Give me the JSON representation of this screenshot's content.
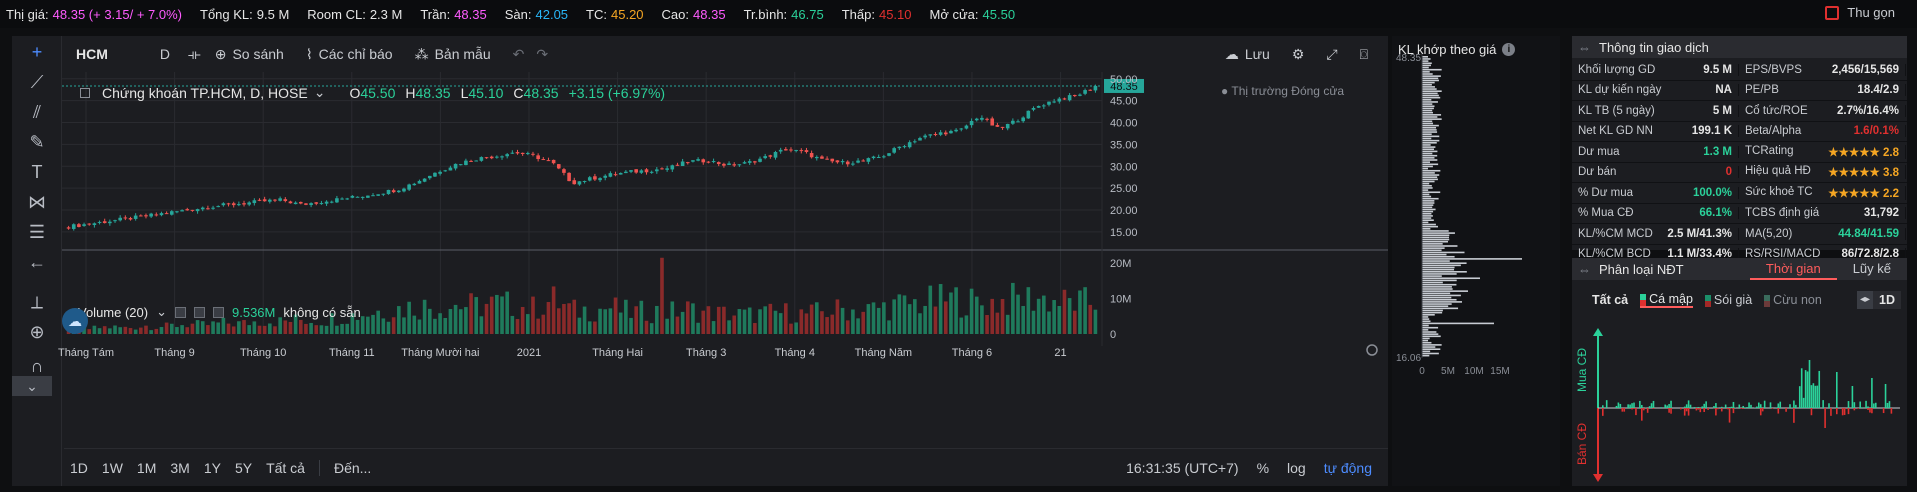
{
  "ticker": {
    "items": [
      {
        "label": "Thị giá:",
        "value": "48.35 (+ 3.15/ + 7.0%)",
        "color": "#ff5cff"
      },
      {
        "label": "Tổng KL:",
        "value": "9.5 M",
        "color": "#e6e6e6"
      },
      {
        "label": "Room CL:",
        "value": "2.3 M",
        "color": "#e6e6e6"
      },
      {
        "label": "Trần:",
        "value": "48.35",
        "color": "#ff5cff"
      },
      {
        "label": "Sàn:",
        "value": "42.05",
        "color": "#29b6f6"
      },
      {
        "label": "TC:",
        "value": "45.20",
        "color": "#f5a623"
      },
      {
        "label": "Cao:",
        "value": "48.35",
        "color": "#ff5cff"
      },
      {
        "label": "Tr.bình:",
        "value": "46.75",
        "color": "#2bd19a"
      },
      {
        "label": "Thấp:",
        "value": "45.10",
        "color": "#e0302f"
      },
      {
        "label": "Mở cửa:",
        "value": "45.50",
        "color": "#2bd19a"
      }
    ],
    "collapse_label": "Thu gọn"
  },
  "toolbar": {
    "symbol": "HCM",
    "interval": "D",
    "compare": "So sánh",
    "indicators": "Các chỉ báo",
    "templates": "Bản mẫu",
    "save": "Lưu"
  },
  "legend": {
    "title": "Chứng khoán TP.HCM, D, HOSE",
    "open_label": "O",
    "open": "45.50",
    "high_label": "H",
    "high": "48.35",
    "low_label": "L",
    "low": "45.10",
    "close_label": "C",
    "close": "48.35",
    "change": "+3.15 (+6.97%)",
    "market_status": "Thị trường Đóng cửa",
    "last_price_tag": "48.35"
  },
  "volume_legend": {
    "title": "Volume (20)",
    "value": "9.536M",
    "na": "không có sẵn"
  },
  "bottom_bar": {
    "ranges": [
      "1D",
      "1W",
      "1M",
      "3M",
      "1Y",
      "5Y",
      "Tất cả"
    ],
    "goto": "Đến...",
    "time": "16:31:35 (UTC+7)",
    "percent": "%",
    "log": "log",
    "auto": "tự động"
  },
  "chart_data": {
    "type": "candlestick",
    "x_tick_labels": [
      "Tháng Tám",
      "Tháng 9",
      "Tháng 10",
      "Tháng 11",
      "Tháng Mười hai",
      "2021",
      "Tháng Hai",
      "Tháng 3",
      "Tháng 4",
      "Tháng Năm",
      "Tháng 6",
      "21"
    ],
    "price_ticks": [
      "50.00",
      "45.00",
      "40.00",
      "35.00",
      "30.00",
      "25.00",
      "20.00",
      "15.00"
    ],
    "volume_ticks": [
      "20M",
      "10M",
      "0"
    ],
    "ylim": [
      12,
      52
    ],
    "volume_ylim": [
      0,
      22
    ],
    "up_color": "#26a69a",
    "down_color": "#ef5350",
    "close_path": [
      16.2,
      16.8,
      17.4,
      18.0,
      18.6,
      19.3,
      19.9,
      20.6,
      21.1,
      21.5,
      22.0,
      22.3,
      21.2,
      21.9,
      22.5,
      23.1,
      23.9,
      24.7,
      26.5,
      28.7,
      30.5,
      31.7,
      32.3,
      33.2,
      32.4,
      30.6,
      26.2,
      27.2,
      28.1,
      28.7,
      29.1,
      29.6,
      31.1,
      31.3,
      30.2,
      30.7,
      32.1,
      33.9,
      33.1,
      31.2,
      30.8,
      31.2,
      32.3,
      34.7,
      36.6,
      37.6,
      38.1,
      41.6,
      38.4,
      40.7,
      43.7,
      45.3,
      46.1,
      48.35
    ],
    "volume_path": [
      1.2,
      1.5,
      2.1,
      1.8,
      2.5,
      2.2,
      3.0,
      2.6,
      3.3,
      3.1,
      4.1,
      3.7,
      4.3,
      3.9,
      5.2,
      5.8,
      6.9,
      7.5,
      8.3,
      7.9,
      8.8,
      8.2,
      9.0,
      8.5,
      7.6,
      10.1,
      6.9,
      7.2,
      7.9,
      6.3,
      6.8,
      6.5,
      7.3,
      6.2,
      6.0,
      5.6,
      6.1,
      6.4,
      5.9,
      6.7,
      7.4,
      6.9,
      7.9,
      8.6,
      9.3,
      9.9,
      10.4,
      8.8,
      9.6,
      10.3,
      10.9,
      9.7,
      9.1,
      9.5
    ],
    "vp_ticks": [
      "0",
      "5M",
      "10M",
      "15M"
    ],
    "vp_top": "48.35",
    "vp_bottom": "16.06"
  },
  "volume_profile": {
    "title": "KL khớp theo giá"
  },
  "info_panel": {
    "title": "Thông tin giao dịch",
    "rows": [
      [
        {
          "l": "Khối lượng GD",
          "v": "9.5 M",
          "c": "#e6e6e6"
        },
        {
          "l": "EPS/BVPS",
          "v": "2,456/15,569",
          "c": "#e6e6e6"
        }
      ],
      [
        {
          "l": "KL dự kiến ngày",
          "v": "NA",
          "c": "#e6e6e6"
        },
        {
          "l": "PE/PB",
          "v": "18.4/2.9",
          "c": "#e6e6e6"
        }
      ],
      [
        {
          "l": "KL TB (5 ngày)",
          "v": "5 M",
          "c": "#e6e6e6"
        },
        {
          "l": "Cổ tức/ROE",
          "v": "2.7%/16.4%",
          "c": "#e6e6e6"
        }
      ],
      [
        {
          "l": "Net KL GD NN",
          "v": "199.1 K",
          "c": "#e6e6e6"
        },
        {
          "l": "Beta/Alpha",
          "v": "1.6/0.1%",
          "c": "#e0302f"
        }
      ],
      [
        {
          "l": "Dư mua",
          "v": "1.3 M",
          "c": "#2bd19a"
        },
        {
          "l": "TCRating",
          "v": "★★★★★ 2.8",
          "c": "#f5a623"
        }
      ],
      [
        {
          "l": "Dư bán",
          "v": "0",
          "c": "#e0302f"
        },
        {
          "l": "Hiệu quả HĐ",
          "v": "★★★★★ 3.8",
          "c": "#f5a623"
        }
      ],
      [
        {
          "l": "% Dư mua",
          "v": "100.0%",
          "c": "#2bd19a"
        },
        {
          "l": "Sức khoẻ TC",
          "v": "★★★★★ 2.2",
          "c": "#f5a623"
        }
      ],
      [
        {
          "l": "% Mua CĐ",
          "v": "66.1%",
          "c": "#2bd19a"
        },
        {
          "l": "TCBS định giá",
          "v": "31,792",
          "c": "#e6e6e6"
        }
      ],
      [
        {
          "l": "KL/%CM MCD",
          "v": "2.5 M/41.3%",
          "c": "#e6e6e6"
        },
        {
          "l": "MA(5,20)",
          "v": "44.84/41.59",
          "c": "#2bd19a"
        }
      ],
      [
        {
          "l": "KL/%CM BCD",
          "v": "1.1 M/33.4%",
          "c": "#e6e6e6"
        },
        {
          "l": "RS/RSI/MACD",
          "v": "86/72.8/2.8",
          "c": "#e6e6e6"
        }
      ]
    ]
  },
  "investor_panel": {
    "title": "Phân loại NĐT",
    "tab_time": "Thời gian",
    "tab_cumulative": "Lũy kế",
    "filters": [
      "Tất cả",
      "Cá mập",
      "Sói già",
      "Cừu non"
    ],
    "period": "1D",
    "buy_label": "Mua CĐ",
    "sell_label": "Bán CĐ"
  }
}
